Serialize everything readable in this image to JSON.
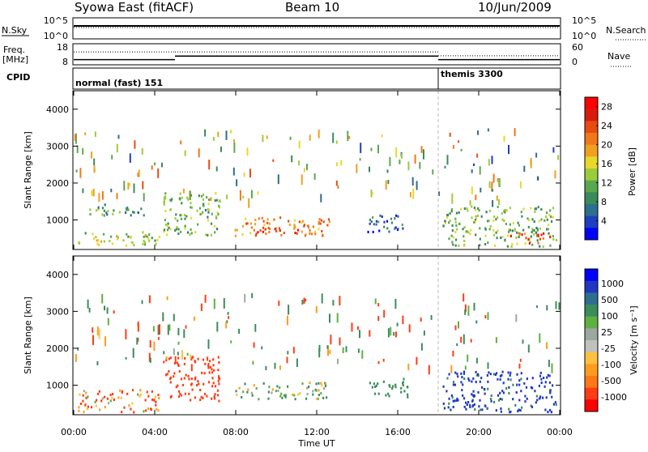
{
  "header": {
    "title": "Syowa East (fitACF)",
    "beam": "Beam 10",
    "date": "10/Jun/2009"
  },
  "colors": {
    "power_scale": [
      "#0000ff",
      "#1e3fbf",
      "#2e6e8e",
      "#3a8a5a",
      "#5aa84e",
      "#9ccc3a",
      "#e8d82a",
      "#f0a020",
      "#f07818",
      "#e84c10",
      "#d81c0c",
      "#ff0000"
    ],
    "velocity_scale": [
      "#ff0000",
      "#ff3c14",
      "#ff7818",
      "#ff9c20",
      "#ffc040",
      "#c0c0c0",
      "#9aa8a0",
      "#60b040",
      "#3c8c5c",
      "#2e6e90",
      "#2038c0",
      "#0000ff"
    ],
    "velocity_blue": "#1e40c0",
    "velocity_green": "#50a83c"
  },
  "chart_data": [
    {
      "type": "line",
      "panel": "noise",
      "left_labels": [
        "N.Sky"
      ],
      "right_labels": [
        "N.Search"
      ],
      "left_ticks": [
        "10^5",
        "10^0"
      ],
      "right_ticks": [
        "10^5",
        "10^0"
      ],
      "x": [
        "00:00",
        "04:00",
        "08:00",
        "12:00",
        "16:00",
        "20:00",
        "00:00"
      ],
      "series": [
        {
          "name": "N.Sky",
          "values": [
            100000,
            100000,
            100000,
            100000,
            100000,
            100000,
            100000
          ]
        },
        {
          "name": "N.Search",
          "values": [
            100000,
            100000,
            100000,
            100000,
            100000,
            100000,
            100000
          ]
        }
      ]
    },
    {
      "type": "line",
      "panel": "frequency",
      "left_labels": [
        "Freq.",
        "[MHz]"
      ],
      "right_labels": [
        "Nave"
      ],
      "left_ticks": [
        "18",
        "8"
      ],
      "right_ticks": [
        "60",
        "0"
      ],
      "series": [
        {
          "name": "Freq.",
          "segments": [
            {
              "from": "00:00",
              "to": "05:00",
              "value": 10
            },
            {
              "from": "05:00",
              "to": "18:00",
              "value": 12
            },
            {
              "from": "18:00",
              "to": "24:00",
              "value": 10
            }
          ]
        },
        {
          "name": "Nave",
          "segments": [
            {
              "from": "00:00",
              "to": "05:00",
              "value": 38
            },
            {
              "from": "05:00",
              "to": "18:00",
              "value": 38
            },
            {
              "from": "18:00",
              "to": "24:00",
              "value": 25
            }
          ]
        }
      ]
    },
    {
      "type": "table",
      "panel": "cpid",
      "label": "CPID",
      "segments": [
        {
          "from": "00:00",
          "to": "18:00",
          "text": "normal (fast) 151"
        },
        {
          "from": "18:00",
          "to": "24:00",
          "text": "themis 3300"
        }
      ]
    },
    {
      "type": "heatmap",
      "panel": "power",
      "ylabel": "Slant Range [km]",
      "yticks": [
        "1000",
        "2000",
        "3000",
        "4000"
      ],
      "ylim": [
        200,
        4500
      ],
      "xlim": [
        "00:00",
        "24:00"
      ],
      "colorbar": {
        "label": "Power [dB]",
        "ticks": [
          "4",
          "8",
          "12",
          "16",
          "20",
          "24",
          "28"
        ],
        "range": [
          0,
          30
        ]
      },
      "regions": [
        {
          "t0": 0.2,
          "t1": 4.2,
          "r0": 300,
          "r1": 700,
          "value": 14
        },
        {
          "t0": 0.4,
          "t1": 3.5,
          "r0": 1150,
          "r1": 1450,
          "value": 9
        },
        {
          "t0": 4.4,
          "t1": 7.2,
          "r0": 600,
          "r1": 1800,
          "value": 12
        },
        {
          "t0": 7.9,
          "t1": 12.6,
          "r0": 600,
          "r1": 1100,
          "value": 20
        },
        {
          "t0": 8.6,
          "t1": 11.2,
          "r0": 650,
          "r1": 850,
          "value": 27
        },
        {
          "t0": 14.5,
          "t1": 16.5,
          "r0": 700,
          "r1": 1200,
          "value": 6
        },
        {
          "t0": 18.2,
          "t1": 23.8,
          "r0": 300,
          "r1": 1400,
          "value": 12
        },
        {
          "t0": 21.5,
          "t1": 23.5,
          "r0": 400,
          "r1": 700,
          "value": 24
        }
      ]
    },
    {
      "type": "heatmap",
      "panel": "velocity",
      "ylabel": "Slant Range [km]",
      "yticks": [
        "1000",
        "2000",
        "3000",
        "4000"
      ],
      "ylim": [
        200,
        4500
      ],
      "xlabel": "Time UT",
      "xticks": [
        "00:00",
        "04:00",
        "08:00",
        "12:00",
        "16:00",
        "20:00",
        "00:00"
      ],
      "colorbar": {
        "label": "Velocity [m s⁻¹]",
        "ticks": [
          "1000",
          "500",
          "100",
          "25",
          "-25",
          "-100",
          "-500",
          "-1000"
        ]
      },
      "regions": [
        {
          "t0": 0.2,
          "t1": 4.2,
          "r0": 300,
          "r1": 900,
          "value": -100
        },
        {
          "t0": 4.4,
          "t1": 7.2,
          "r0": 600,
          "r1": 1800,
          "value": -300
        },
        {
          "t0": 7.9,
          "t1": 12.6,
          "r0": 650,
          "r1": 1100,
          "value": 50
        },
        {
          "t0": 14.5,
          "t1": 16.5,
          "r0": 700,
          "r1": 1200,
          "value": 300
        },
        {
          "t0": 18.2,
          "t1": 23.8,
          "r0": 300,
          "r1": 1400,
          "value": 600
        }
      ]
    }
  ]
}
